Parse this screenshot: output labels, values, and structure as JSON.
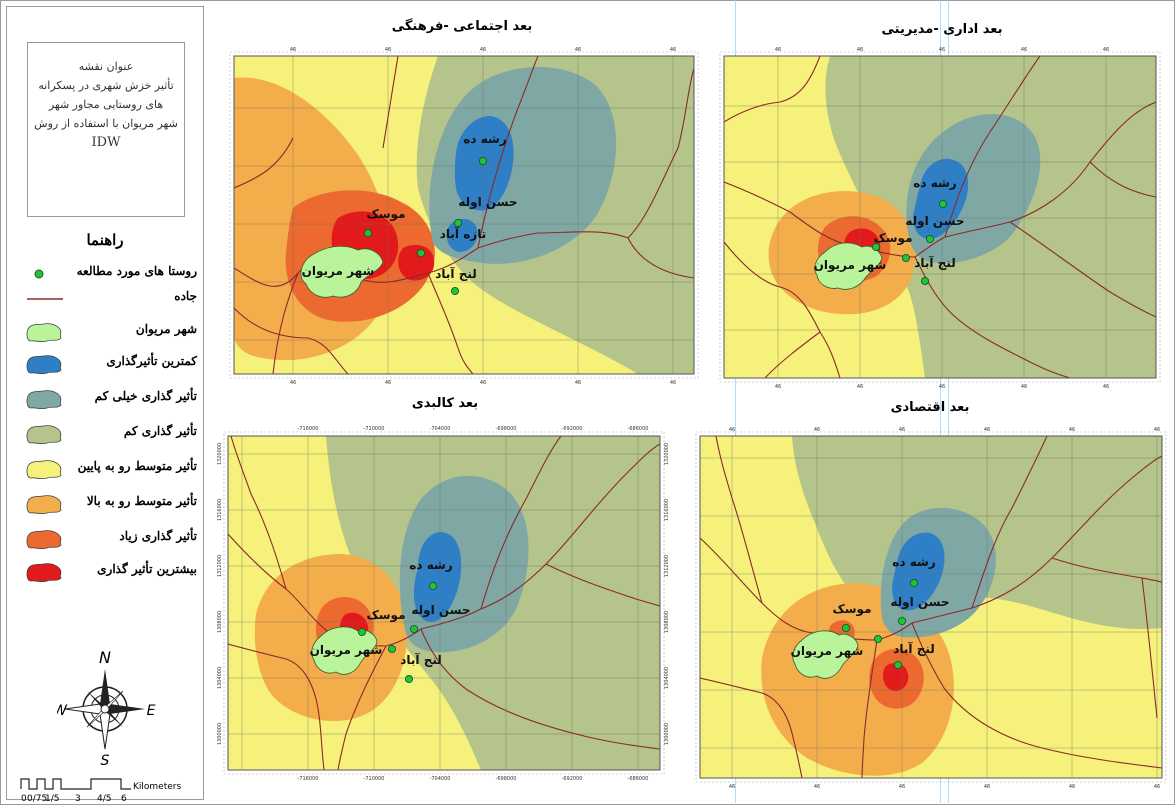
{
  "legend": {
    "map_title_heading": "عنوان نقشه",
    "map_title_lines": [
      "تأثیر خزش شهری در پسکرانه",
      "های روستایی مجاور شهر",
      "شهر مریوان با استفاده از روش"
    ],
    "map_title_method": "IDW",
    "legend_title": "راهنما",
    "items": [
      {
        "label": "روستا های مورد مطالعه",
        "symbol": "village-point-icon",
        "color": "#22c23a"
      },
      {
        "label": "جاده",
        "symbol": "road-line-icon",
        "color": "#8b2a2a"
      },
      {
        "label": "شهر مریوان",
        "symbol": "city-polygon-icon",
        "color": "#b9f49a"
      },
      {
        "label": "کمترین تأثیرگذاری",
        "symbol": "zone-polygon-icon",
        "color": "#2e7fc6"
      },
      {
        "label": "تأثیر گذاری خیلی کم",
        "symbol": "zone-polygon-icon",
        "color": "#7fa8a5"
      },
      {
        "label": "تأثیر گذاری کم",
        "symbol": "zone-polygon-icon",
        "color": "#b4c48a"
      },
      {
        "label": "تأثیر متوسط رو به پایین",
        "symbol": "zone-polygon-icon",
        "color": "#f6f17a"
      },
      {
        "label": "تأثیر متوسط رو به بالا",
        "symbol": "zone-polygon-icon",
        "color": "#f4ad4b"
      },
      {
        "label": "تأثیر گذاری زیاد",
        "symbol": "zone-polygon-icon",
        "color": "#ec6a2f"
      },
      {
        "label": "بیشترین تأثیر گذاری",
        "symbol": "zone-polygon-icon",
        "color": "#e31a1c"
      }
    ],
    "compass_labels": {
      "n": "N",
      "e": "E",
      "w": "W",
      "s": "S"
    },
    "scale": {
      "ticks": [
        "0",
        "0/75",
        "1/5",
        "3",
        "4/5",
        "6"
      ],
      "unit": "Kilometers"
    }
  },
  "maps": {
    "social": {
      "title": "بعد اجتماعی -فرهنگی"
    },
    "admin": {
      "title": "بعد اداری -مدیریتی"
    },
    "physical": {
      "title": "بعد کالبدی",
      "x_ticks": [
        "-716000",
        "-710000",
        "-704000",
        "-698000",
        "-692000",
        "-686000"
      ],
      "y_ticks": [
        "1320000",
        "1316000",
        "1312000",
        "1308000",
        "1304000",
        "1300000"
      ]
    },
    "economic": {
      "title": "بعد اقتصادی"
    }
  },
  "places": {
    "rasheh_deh": "رشه ده",
    "hasan_avleh": "حسن اوله",
    "tazeh_abad": "تازه آباد",
    "mousak": "موسک",
    "lanj_abad": "لنج آباد",
    "marivan": "شهر مریوان"
  },
  "frame_tick_label": "46"
}
